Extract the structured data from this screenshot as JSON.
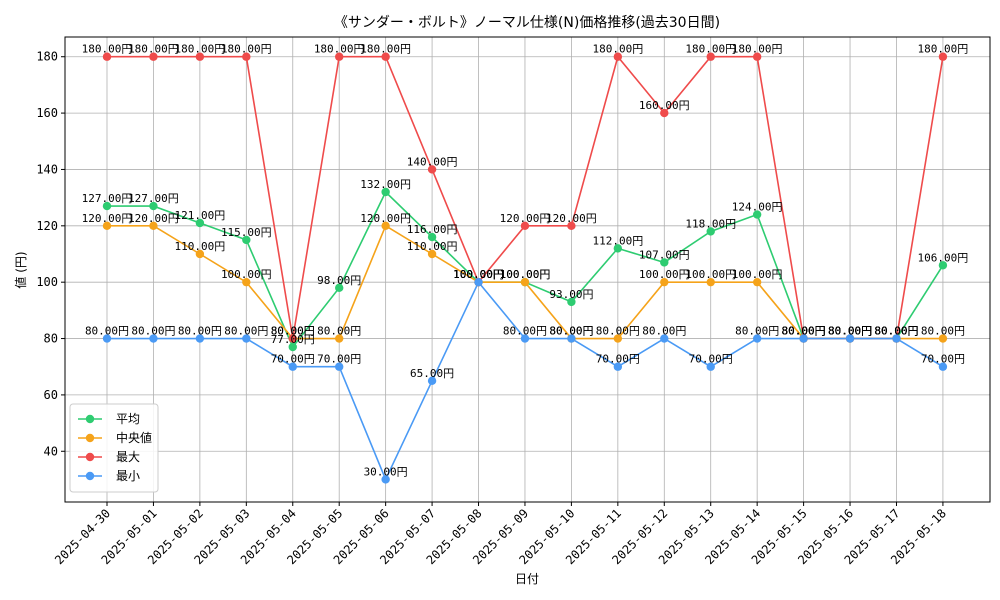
{
  "chart_data": {
    "type": "line",
    "title": "《サンダー・ボルト》ノーマル仕様(N)価格推移(過去30日間)",
    "xlabel": "日付",
    "ylabel": "値 (円)",
    "ylim": [
      22,
      187
    ],
    "yticks": [
      40,
      60,
      80,
      100,
      120,
      140,
      160,
      180
    ],
    "grid": true,
    "legend_position": "lower-left",
    "label_suffix": "円",
    "categories": [
      "2025-04-30",
      "2025-05-01",
      "2025-05-02",
      "2025-05-03",
      "2025-05-04",
      "2025-05-05",
      "2025-05-06",
      "2025-05-07",
      "2025-05-08",
      "2025-05-09",
      "2025-05-10",
      "2025-05-11",
      "2025-05-12",
      "2025-05-13",
      "2025-05-14",
      "2025-05-15",
      "2025-05-16",
      "2025-05-17",
      "2025-05-18"
    ],
    "series": [
      {
        "name": "平均",
        "color": "#2ecc71",
        "values": [
          127,
          127,
          121,
          115,
          77,
          98,
          132,
          116,
          100,
          100,
          93,
          112,
          107,
          118,
          124,
          80,
          80,
          80,
          106
        ]
      },
      {
        "name": "中央値",
        "color": "#f5a31a",
        "values": [
          120,
          120,
          110,
          100,
          80,
          80,
          120,
          110,
          100,
          100,
          80,
          80,
          100,
          100,
          100,
          80,
          80,
          80,
          80
        ]
      },
      {
        "name": "最大",
        "color": "#ef4b4b",
        "values": [
          180,
          180,
          180,
          180,
          80,
          180,
          180,
          140,
          100,
          120,
          120,
          180,
          160,
          180,
          180,
          80,
          80,
          80,
          180
        ]
      },
      {
        "name": "最小",
        "color": "#4a9af5",
        "values": [
          80,
          80,
          80,
          80,
          70,
          70,
          30,
          65,
          100,
          80,
          80,
          70,
          80,
          70,
          80,
          80,
          80,
          80,
          70
        ]
      }
    ]
  }
}
